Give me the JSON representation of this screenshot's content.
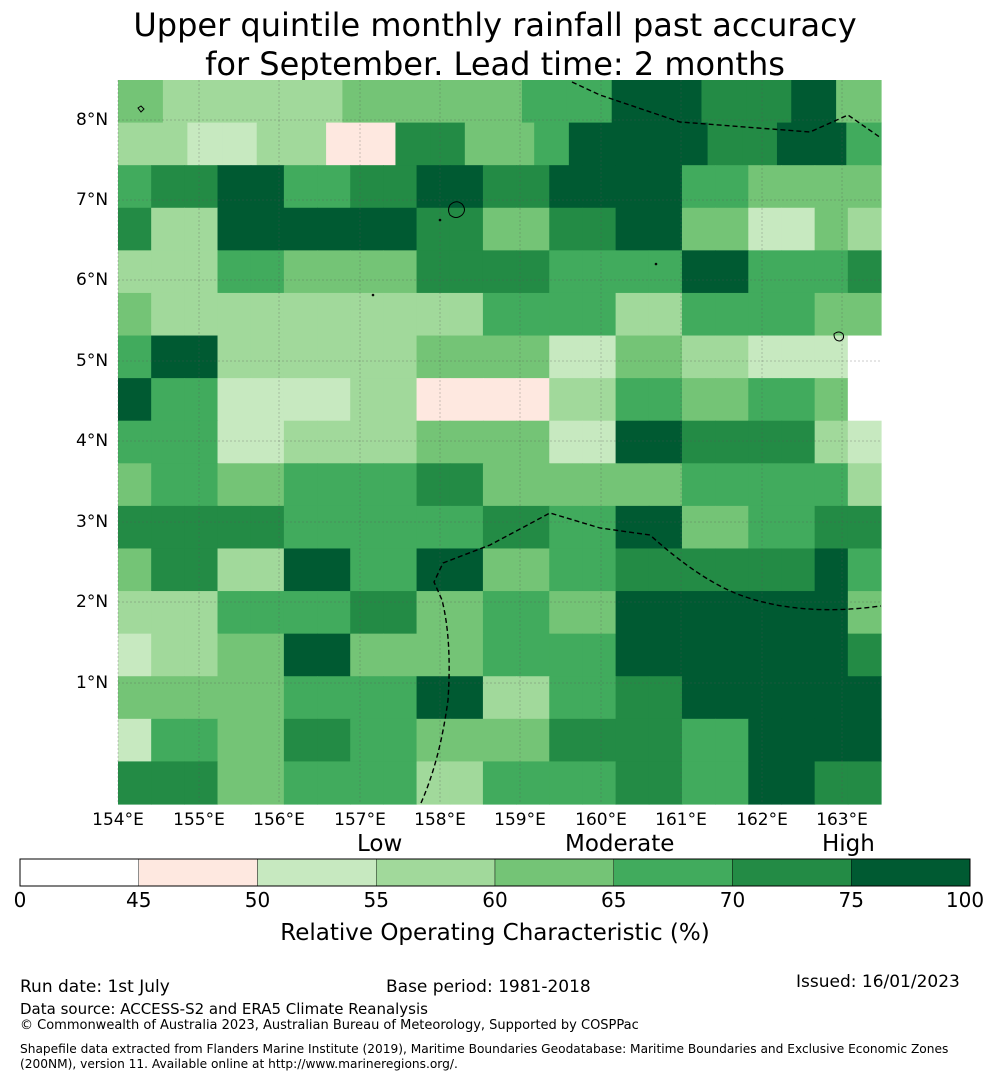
{
  "title": {
    "line1": "Upper quintile monthly rainfall past accuracy",
    "line2": "for September. Lead time: 2 months"
  },
  "map": {
    "lat_labels": [
      "8°N",
      "7°N",
      "6°N",
      "5°N",
      "4°N",
      "3°N",
      "2°N",
      "1°N"
    ],
    "lon_labels": [
      "154°E",
      "155°E",
      "156°E",
      "157°E",
      "158°E",
      "159°E",
      "160°E",
      "161°E",
      "162°E",
      "163°E"
    ],
    "palette": [
      "#ffffff",
      "#fee8e0",
      "#c7e9c0",
      "#a1d99b",
      "#74c476",
      "#41ab5d",
      "#238b45",
      "#005a32"
    ],
    "grid_levels": [
      [
        4,
        3,
        3,
        3,
        3,
        4,
        4,
        4,
        4,
        5,
        5,
        7,
        7,
        6,
        6,
        7,
        4
      ],
      [
        3,
        3,
        2,
        2,
        3,
        3,
        1,
        1,
        6,
        6,
        4,
        4,
        5,
        7,
        7,
        7,
        7,
        6,
        6,
        7,
        7,
        5
      ],
      [
        5,
        6,
        6,
        7,
        7,
        5,
        5,
        6,
        6,
        7,
        7,
        6,
        6,
        7,
        7,
        7,
        7,
        5,
        5,
        4,
        4,
        4,
        4
      ],
      [
        6,
        3,
        3,
        7,
        7,
        7,
        7,
        7,
        7,
        6,
        6,
        4,
        4,
        6,
        6,
        7,
        7,
        4,
        4,
        2,
        2,
        4,
        3
      ],
      [
        3,
        3,
        3,
        5,
        5,
        4,
        4,
        4,
        4,
        6,
        6,
        6,
        6,
        5,
        5,
        5,
        5,
        7,
        7,
        5,
        5,
        5,
        6
      ],
      [
        4,
        3,
        3,
        3,
        3,
        3,
        3,
        3,
        3,
        3,
        3,
        5,
        5,
        5,
        5,
        3,
        3,
        5,
        5,
        5,
        5,
        4,
        4
      ],
      [
        5,
        7,
        7,
        3,
        3,
        3,
        3,
        3,
        3,
        4,
        4,
        4,
        4,
        2,
        2,
        4,
        4,
        3,
        3,
        2,
        2,
        2,
        0
      ],
      [
        7,
        5,
        5,
        2,
        2,
        2,
        2,
        3,
        3,
        1,
        1,
        1,
        1,
        3,
        3,
        5,
        5,
        4,
        4,
        5,
        5,
        4,
        0
      ],
      [
        5,
        5,
        5,
        2,
        2,
        3,
        3,
        3,
        3,
        4,
        4,
        4,
        4,
        2,
        2,
        7,
        7,
        6,
        6,
        6,
        6,
        3,
        2
      ],
      [
        4,
        5,
        5,
        4,
        4,
        5,
        5,
        5,
        5,
        6,
        6,
        4,
        4,
        4,
        4,
        4,
        4,
        5,
        5,
        5,
        5,
        5,
        3
      ],
      [
        6,
        6,
        6,
        6,
        6,
        5,
        5,
        5,
        5,
        5,
        5,
        6,
        6,
        5,
        5,
        7,
        7,
        4,
        4,
        5,
        5,
        6,
        6
      ],
      [
        4,
        6,
        6,
        3,
        3,
        7,
        7,
        5,
        5,
        7,
        7,
        4,
        4,
        5,
        5,
        6,
        6,
        6,
        6,
        6,
        6,
        7,
        5
      ],
      [
        3,
        3,
        3,
        5,
        5,
        5,
        5,
        6,
        6,
        4,
        4,
        5,
        5,
        4,
        4,
        7,
        7,
        7,
        7,
        7,
        7,
        7,
        4
      ],
      [
        2,
        3,
        3,
        4,
        4,
        7,
        7,
        4,
        4,
        4,
        4,
        5,
        5,
        5,
        5,
        7,
        7,
        7,
        7,
        7,
        7,
        7,
        6
      ],
      [
        4,
        4,
        4,
        4,
        4,
        5,
        5,
        5,
        5,
        7,
        7,
        3,
        3,
        5,
        5,
        6,
        6,
        7,
        7,
        7,
        7,
        7,
        7
      ],
      [
        2,
        5,
        5,
        4,
        4,
        6,
        6,
        5,
        5,
        4,
        4,
        4,
        4,
        6,
        6,
        6,
        6,
        5,
        5,
        7,
        7,
        7,
        7
      ],
      [
        6,
        6,
        6,
        4,
        4,
        5,
        5,
        5,
        5,
        3,
        3,
        5,
        5,
        5,
        5,
        6,
        6,
        5,
        5,
        7,
        7,
        6,
        6
      ]
    ]
  },
  "colorbar": {
    "categories": [
      "Low",
      "Moderate",
      "High"
    ],
    "boundaries": [
      0,
      45,
      50,
      55,
      60,
      65,
      70,
      75,
      100
    ],
    "tick_labels": [
      "0",
      "45",
      "50",
      "55",
      "60",
      "65",
      "70",
      "75",
      "100"
    ],
    "colors": [
      "#ffffff",
      "#fee8e0",
      "#c7e9c0",
      "#a1d99b",
      "#74c476",
      "#41ab5d",
      "#238b45",
      "#005a32"
    ],
    "title": "Relative Operating Characteristic (%)"
  },
  "footer": {
    "run_date": "Run date: 1st July",
    "base_period": "Base period: 1981-2018",
    "issued": "Issued: 16/01/2023",
    "data_source": "Data source: ACCESS-S2 and ERA5 Climate Reanalysis",
    "copyright": "© Commonwealth of Australia 2023, Australian Bureau of Meteorology, Supported by COSPPac",
    "shapefile": "Shapefile data extracted from Flanders Marine Institute (2019), Maritime Boundaries Geodatabase: Maritime Boundaries and Exclusive Economic Zones (200NM), version 11. Available online at http://www.marineregions.org/."
  }
}
